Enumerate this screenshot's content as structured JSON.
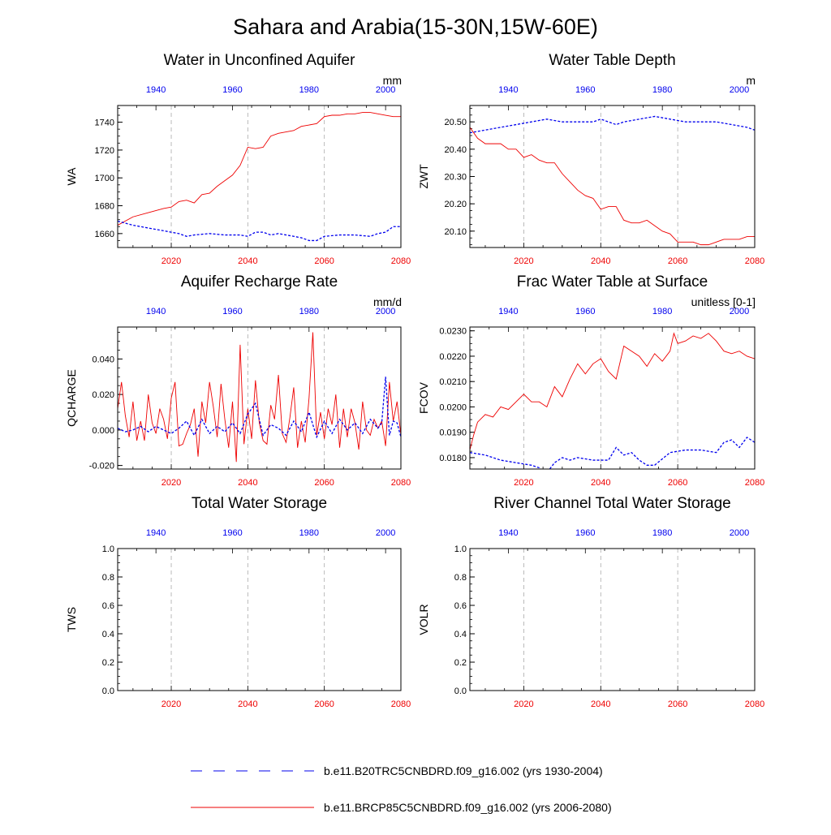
{
  "page_title": "Sahara and Arabia(15-30N,15W-60E)",
  "colors": {
    "historical": "#0000ee",
    "future": "#ee0000",
    "axis": "#000000",
    "grid": "#aaaaaa"
  },
  "legend": {
    "historical": "b.e11.B20TRC5CNBDRD.f09_g16.002 (yrs 1930-2004)",
    "future": "b.e11.BRCP85C5CNBDRD.f09_g16.002 (yrs 2006-2080)"
  },
  "chart_data": [
    {
      "type": "line",
      "title": "Water in Unconfined Aquifer",
      "ylabel": "WA",
      "units": "mm",
      "ylim": [
        1650,
        1752
      ],
      "yticks": [
        1660,
        1680,
        1700,
        1720,
        1740
      ],
      "ytick_labels": [
        "1660",
        "1680",
        "1700",
        "1720",
        "1740"
      ],
      "bottom_xlim": [
        2006,
        2080
      ],
      "bottom_xticks": [
        "2020",
        "2040",
        "2060",
        "2080"
      ],
      "top_xlim": [
        1930,
        2004
      ],
      "top_xticks": [
        "1940",
        "1960",
        "1980",
        "2000"
      ],
      "series": [
        {
          "name": "b.e11.BRCP85C5CNBDRD.f09_g16.002 (yrs 2006-2080)",
          "style": "solid",
          "x": [
            2006,
            2010,
            2014,
            2018,
            2020,
            2022,
            2024,
            2026,
            2028,
            2030,
            2032,
            2034,
            2036,
            2038,
            2040,
            2042,
            2044,
            2046,
            2048,
            2050,
            2052,
            2054,
            2056,
            2058,
            2060,
            2062,
            2064,
            2066,
            2068,
            2070,
            2072,
            2074,
            2076,
            2078,
            2080
          ],
          "values": [
            1666,
            1672,
            1675,
            1678,
            1679,
            1683,
            1684,
            1682,
            1688,
            1689,
            1694,
            1698,
            1702,
            1709,
            1722,
            1721,
            1722,
            1730,
            1732,
            1733,
            1734,
            1737,
            1738,
            1739,
            1744,
            1745,
            1745,
            1746,
            1746,
            1747,
            1747,
            1746,
            1745,
            1744,
            1744
          ]
        },
        {
          "name": "b.e11.B20TRC5CNBDRD.f09_g16.002 (yrs 1930-2004)",
          "style": "dashed",
          "x": [
            1930,
            1934,
            1938,
            1942,
            1946,
            1948,
            1950,
            1954,
            1958,
            1962,
            1964,
            1966,
            1968,
            1970,
            1972,
            1974,
            1976,
            1978,
            1980,
            1982,
            1984,
            1988,
            1992,
            1996,
            1998,
            2000,
            2002,
            2004
          ],
          "values": [
            1669,
            1666,
            1664,
            1662,
            1660,
            1658,
            1659,
            1660,
            1659,
            1659,
            1658,
            1661,
            1661,
            1659,
            1660,
            1659,
            1658,
            1657,
            1655,
            1655,
            1658,
            1659,
            1659,
            1658,
            1660,
            1661,
            1665,
            1665
          ]
        }
      ]
    },
    {
      "type": "line",
      "title": "Water Table Depth",
      "ylabel": "ZWT",
      "units": "m",
      "ylim": [
        20.04,
        20.56
      ],
      "yticks": [
        20.1,
        20.2,
        20.3,
        20.4,
        20.5
      ],
      "ytick_labels": [
        "20.10",
        "20.20",
        "20.30",
        "20.40",
        "20.50"
      ],
      "bottom_xlim": [
        2006,
        2080
      ],
      "bottom_xticks": [
        "2020",
        "2040",
        "2060",
        "2080"
      ],
      "top_xlim": [
        1930,
        2004
      ],
      "top_xticks": [
        "1940",
        "1960",
        "1980",
        "2000"
      ],
      "series": [
        {
          "name": "b.e11.BRCP85C5CNBDRD.f09_g16.002 (yrs 2006-2080)",
          "style": "solid",
          "x": [
            2006,
            2008,
            2010,
            2014,
            2016,
            2018,
            2020,
            2022,
            2024,
            2026,
            2028,
            2030,
            2032,
            2034,
            2036,
            2038,
            2040,
            2042,
            2044,
            2046,
            2048,
            2050,
            2052,
            2054,
            2056,
            2058,
            2060,
            2062,
            2064,
            2066,
            2068,
            2070,
            2072,
            2074,
            2076,
            2078,
            2080
          ],
          "values": [
            20.48,
            20.44,
            20.42,
            20.42,
            20.4,
            20.4,
            20.37,
            20.38,
            20.36,
            20.35,
            20.35,
            20.31,
            20.28,
            20.25,
            20.23,
            20.22,
            20.18,
            20.19,
            20.19,
            20.14,
            20.13,
            20.13,
            20.14,
            20.12,
            20.1,
            20.09,
            20.06,
            20.06,
            20.06,
            20.05,
            20.05,
            20.06,
            20.07,
            20.07,
            20.07,
            20.08,
            20.08
          ]
        },
        {
          "name": "b.e11.B20TRC5CNBDRD.f09_g16.002 (yrs 1930-2004)",
          "style": "dashed",
          "x": [
            1930,
            1934,
            1938,
            1942,
            1946,
            1950,
            1954,
            1958,
            1962,
            1964,
            1966,
            1968,
            1970,
            1974,
            1978,
            1982,
            1986,
            1990,
            1994,
            1998,
            2002,
            2004
          ],
          "values": [
            20.46,
            20.47,
            20.48,
            20.49,
            20.5,
            20.51,
            20.5,
            20.5,
            20.5,
            20.51,
            20.5,
            20.49,
            20.5,
            20.51,
            20.52,
            20.51,
            20.5,
            20.5,
            20.5,
            20.49,
            20.48,
            20.47
          ]
        }
      ]
    },
    {
      "type": "line",
      "title": "Aquifer Recharge Rate",
      "ylabel": "QCHARGE",
      "units": "mm/d",
      "ylim": [
        -0.022,
        0.058
      ],
      "yticks": [
        -0.02,
        0.0,
        0.02,
        0.04
      ],
      "ytick_labels": [
        "-0.020",
        "0.000",
        "0.020",
        "0.040"
      ],
      "bottom_xlim": [
        2006,
        2080
      ],
      "bottom_xticks": [
        "2020",
        "2040",
        "2060",
        "2080"
      ],
      "top_xlim": [
        1930,
        2004
      ],
      "top_xticks": [
        "1940",
        "1960",
        "1980",
        "2000"
      ],
      "series": [
        {
          "name": "b.e11.BRCP85C5CNBDRD.f09_g16.002 (yrs 2006-2080)",
          "style": "solid",
          "x": [
            2006,
            2007,
            2008,
            2009,
            2010,
            2011,
            2012,
            2013,
            2014,
            2015,
            2016,
            2017,
            2018,
            2019,
            2020,
            2021,
            2022,
            2023,
            2024,
            2025,
            2026,
            2027,
            2028,
            2029,
            2030,
            2031,
            2032,
            2033,
            2034,
            2035,
            2036,
            2037,
            2038,
            2039,
            2040,
            2041,
            2042,
            2043,
            2044,
            2045,
            2046,
            2047,
            2048,
            2049,
            2050,
            2051,
            2052,
            2053,
            2054,
            2055,
            2056,
            2057,
            2058,
            2059,
            2060,
            2061,
            2062,
            2063,
            2064,
            2065,
            2066,
            2067,
            2068,
            2069,
            2070,
            2071,
            2072,
            2073,
            2074,
            2075,
            2076,
            2077,
            2078,
            2079,
            2080
          ],
          "values": [
            0.012,
            0.027,
            0.008,
            -0.004,
            0.016,
            -0.006,
            0.005,
            -0.006,
            0.02,
            0.004,
            -0.002,
            0.012,
            0.006,
            -0.005,
            0.018,
            0.027,
            -0.009,
            -0.008,
            -0.002,
            0.003,
            0.012,
            -0.015,
            0.016,
            0.004,
            0.027,
            0.013,
            -0.004,
            0.026,
            0.006,
            -0.01,
            0.016,
            -0.018,
            0.048,
            -0.008,
            0.012,
            -0.005,
            0.028,
            0.004,
            -0.006,
            -0.008,
            0.014,
            0.006,
            0.031,
            -0.002,
            -0.007,
            0.007,
            0.024,
            -0.01,
            0.005,
            -0.007,
            0.018,
            0.055,
            -0.003,
            0.01,
            -0.005,
            0.012,
            0.003,
            0.02,
            -0.01,
            0.012,
            -0.004,
            0.012,
            0.004,
            -0.011,
            0.016,
            0.0,
            -0.003,
            0.006,
            0.001,
            0.005,
            -0.009,
            0.027,
            0.005,
            0.016,
            -0.003
          ]
        },
        {
          "name": "b.e11.B20TRC5CNBDRD.f09_g16.002 (yrs 1930-2004)",
          "style": "dashed",
          "x": [
            1930,
            1932,
            1934,
            1936,
            1938,
            1940,
            1942,
            1944,
            1946,
            1948,
            1950,
            1952,
            1954,
            1956,
            1958,
            1960,
            1962,
            1964,
            1966,
            1968,
            1970,
            1972,
            1974,
            1976,
            1978,
            1980,
            1982,
            1984,
            1986,
            1988,
            1990,
            1992,
            1994,
            1996,
            1998,
            1999,
            2000,
            2001,
            2002,
            2003,
            2004
          ],
          "values": [
            0.001,
            -0.001,
            0.0,
            0.002,
            -0.001,
            0.002,
            0.0,
            -0.002,
            0.001,
            0.005,
            -0.003,
            0.006,
            -0.002,
            0.002,
            -0.001,
            0.004,
            -0.002,
            0.009,
            0.015,
            -0.003,
            0.003,
            0.001,
            -0.003,
            0.005,
            -0.001,
            0.01,
            -0.004,
            0.005,
            -0.002,
            0.006,
            0.0,
            0.004,
            -0.002,
            0.006,
            0.001,
            0.004,
            0.03,
            -0.003,
            0.005,
            0.004,
            -0.004
          ]
        }
      ]
    },
    {
      "type": "line",
      "title": "Frac Water Table at Surface",
      "ylabel": "FCOV",
      "units": "unitless [0-1]",
      "ylim": [
        0.01755,
        0.02315
      ],
      "yticks": [
        0.018,
        0.019,
        0.02,
        0.021,
        0.022,
        0.023
      ],
      "ytick_labels": [
        "0.0180",
        "0.0190",
        "0.0200",
        "0.0210",
        "0.0220",
        "0.0230"
      ],
      "bottom_xlim": [
        2006,
        2080
      ],
      "bottom_xticks": [
        "2020",
        "2040",
        "2060",
        "2080"
      ],
      "top_xlim": [
        1930,
        2004
      ],
      "top_xticks": [
        "1940",
        "1960",
        "1980",
        "2000"
      ],
      "series": [
        {
          "name": "b.e11.BRCP85C5CNBDRD.f09_g16.002 (yrs 2006-2080)",
          "style": "solid",
          "x": [
            2006,
            2007,
            2008,
            2010,
            2012,
            2014,
            2016,
            2018,
            2020,
            2022,
            2024,
            2026,
            2028,
            2030,
            2032,
            2034,
            2036,
            2038,
            2040,
            2042,
            2044,
            2046,
            2048,
            2050,
            2052,
            2054,
            2056,
            2058,
            2059,
            2060,
            2062,
            2064,
            2066,
            2068,
            2070,
            2072,
            2074,
            2076,
            2078,
            2080
          ],
          "values": [
            0.0183,
            0.0189,
            0.0194,
            0.0197,
            0.0196,
            0.02,
            0.0199,
            0.0202,
            0.0205,
            0.0202,
            0.0202,
            0.02,
            0.0208,
            0.0204,
            0.0211,
            0.0217,
            0.0213,
            0.0217,
            0.0219,
            0.0214,
            0.0211,
            0.0224,
            0.0222,
            0.022,
            0.0216,
            0.0221,
            0.0218,
            0.0222,
            0.0229,
            0.0225,
            0.0226,
            0.0228,
            0.0227,
            0.0229,
            0.0226,
            0.0222,
            0.0221,
            0.0222,
            0.022,
            0.0219
          ]
        },
        {
          "name": "b.e11.B20TRC5CNBDRD.f09_g16.002 (yrs 1930-2004)",
          "style": "dashed",
          "x": [
            1930,
            1934,
            1938,
            1942,
            1946,
            1948,
            1950,
            1952,
            1954,
            1956,
            1958,
            1962,
            1966,
            1968,
            1970,
            1972,
            1974,
            1976,
            1978,
            1982,
            1986,
            1990,
            1994,
            1996,
            1998,
            2000,
            2002,
            2004
          ],
          "values": [
            0.0182,
            0.0181,
            0.0179,
            0.0178,
            0.0177,
            0.0176,
            0.0174,
            0.0178,
            0.018,
            0.0179,
            0.018,
            0.0179,
            0.0179,
            0.0184,
            0.0181,
            0.0182,
            0.0179,
            0.0177,
            0.0177,
            0.0182,
            0.0183,
            0.0183,
            0.0182,
            0.0186,
            0.0187,
            0.0184,
            0.0188,
            0.0186
          ]
        }
      ]
    },
    {
      "type": "line",
      "title": "Total Water Storage",
      "ylabel": "TWS",
      "units": "",
      "ylim": [
        0,
        1
      ],
      "yticks": [
        0,
        0.2,
        0.4,
        0.6,
        0.8,
        1.0
      ],
      "ytick_labels": [
        "0.0",
        "0.2",
        "0.4",
        "0.6",
        "0.8",
        "1.0"
      ],
      "bottom_xlim": [
        2006,
        2080
      ],
      "bottom_xticks": [
        "2020",
        "2040",
        "2060",
        "2080"
      ],
      "top_xlim": [
        1930,
        2004
      ],
      "top_xticks": [
        "1940",
        "1960",
        "1980",
        "2000"
      ],
      "series": []
    },
    {
      "type": "line",
      "title": "River Channel Total Water Storage",
      "ylabel": "VOLR",
      "units": "",
      "ylim": [
        0,
        1
      ],
      "yticks": [
        0,
        0.2,
        0.4,
        0.6,
        0.8,
        1.0
      ],
      "ytick_labels": [
        "0.0",
        "0.2",
        "0.4",
        "0.6",
        "0.8",
        "1.0"
      ],
      "bottom_xlim": [
        2006,
        2080
      ],
      "bottom_xticks": [
        "2020",
        "2040",
        "2060",
        "2080"
      ],
      "top_xlim": [
        1930,
        2004
      ],
      "top_xticks": [
        "1940",
        "1960",
        "1980",
        "2000"
      ],
      "series": []
    }
  ]
}
